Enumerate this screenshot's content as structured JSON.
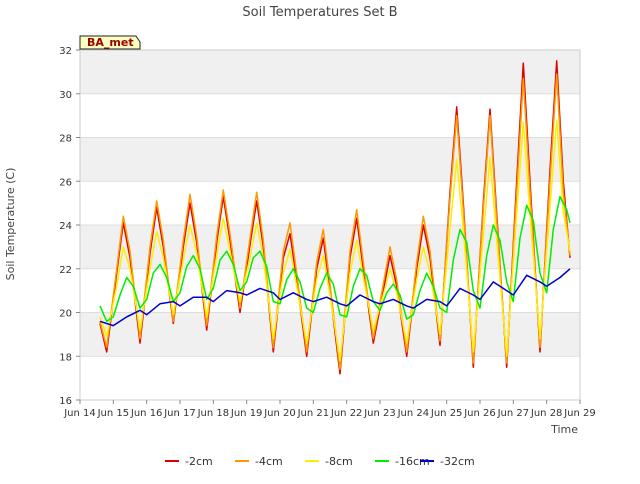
{
  "chart_data": {
    "type": "line",
    "title": "Soil Temperatures Set B",
    "xlabel": "Time",
    "ylabel": "Soil Temperature (C)",
    "site_label": "BA_met",
    "ylim": [
      16,
      32
    ],
    "xlim": [
      14.0,
      29.0
    ],
    "yticks": [
      16,
      18,
      20,
      22,
      24,
      26,
      28,
      30,
      32
    ],
    "xticks": [
      {
        "x": 14,
        "label": "Jun 14"
      },
      {
        "x": 15,
        "label": "Jun 15"
      },
      {
        "x": 16,
        "label": "Jun 16"
      },
      {
        "x": 17,
        "label": "Jun 17"
      },
      {
        "x": 18,
        "label": "Jun 18"
      },
      {
        "x": 19,
        "label": "Jun 19"
      },
      {
        "x": 20,
        "label": "Jun 20"
      },
      {
        "x": 21,
        "label": "Jun 21"
      },
      {
        "x": 22,
        "label": "Jun 22"
      },
      {
        "x": 23,
        "label": "Jun 23"
      },
      {
        "x": 24,
        "label": "Jun 24"
      },
      {
        "x": 25,
        "label": "Jun 25"
      },
      {
        "x": 26,
        "label": "Jun 26"
      },
      {
        "x": 27,
        "label": "Jun 27"
      },
      {
        "x": 28,
        "label": "Jun 28"
      },
      {
        "x": 29,
        "label": "Jun 29"
      }
    ],
    "grid": true,
    "legend_position": "bottom",
    "series": [
      {
        "name": "-2cm",
        "color": "#dd0000",
        "points": [
          [
            14.6,
            19.5
          ],
          [
            14.8,
            18.2
          ],
          [
            15.1,
            21.8
          ],
          [
            15.3,
            24.1
          ],
          [
            15.5,
            22.5
          ],
          [
            15.8,
            18.6
          ],
          [
            16.1,
            22.7
          ],
          [
            16.3,
            24.8
          ],
          [
            16.5,
            23.0
          ],
          [
            16.8,
            19.5
          ],
          [
            17.1,
            23.0
          ],
          [
            17.3,
            25.0
          ],
          [
            17.5,
            23.2
          ],
          [
            17.8,
            19.2
          ],
          [
            18.1,
            23.2
          ],
          [
            18.3,
            25.3
          ],
          [
            18.5,
            23.3
          ],
          [
            18.8,
            20.0
          ],
          [
            19.1,
            23.1
          ],
          [
            19.3,
            25.1
          ],
          [
            19.5,
            23.0
          ],
          [
            19.8,
            18.2
          ],
          [
            20.1,
            22.5
          ],
          [
            20.3,
            23.6
          ],
          [
            20.5,
            21.5
          ],
          [
            20.8,
            18.0
          ],
          [
            21.1,
            22.0
          ],
          [
            21.3,
            23.4
          ],
          [
            21.5,
            21.0
          ],
          [
            21.8,
            17.2
          ],
          [
            22.1,
            22.5
          ],
          [
            22.3,
            24.3
          ],
          [
            22.5,
            22.0
          ],
          [
            22.8,
            18.6
          ],
          [
            23.1,
            21.0
          ],
          [
            23.3,
            22.6
          ],
          [
            23.5,
            21.2
          ],
          [
            23.8,
            18.0
          ],
          [
            24.1,
            22.0
          ],
          [
            24.3,
            24.0
          ],
          [
            24.5,
            22.5
          ],
          [
            24.8,
            18.5
          ],
          [
            25.1,
            25.5
          ],
          [
            25.3,
            29.4
          ],
          [
            25.5,
            25.0
          ],
          [
            25.8,
            17.5
          ],
          [
            26.1,
            25.0
          ],
          [
            26.3,
            29.3
          ],
          [
            26.5,
            24.5
          ],
          [
            26.8,
            17.5
          ],
          [
            27.1,
            26.0
          ],
          [
            27.3,
            31.4
          ],
          [
            27.5,
            26.0
          ],
          [
            27.8,
            18.2
          ],
          [
            28.1,
            26.5
          ],
          [
            28.3,
            31.5
          ],
          [
            28.5,
            26.0
          ],
          [
            28.7,
            22.5
          ]
        ]
      },
      {
        "name": "-4cm",
        "color": "#ff9900",
        "points": [
          [
            14.6,
            19.6
          ],
          [
            14.8,
            18.4
          ],
          [
            15.1,
            22.0
          ],
          [
            15.3,
            24.4
          ],
          [
            15.5,
            22.8
          ],
          [
            15.8,
            18.8
          ],
          [
            16.1,
            23.0
          ],
          [
            16.3,
            25.1
          ],
          [
            16.5,
            23.3
          ],
          [
            16.8,
            19.6
          ],
          [
            17.1,
            23.3
          ],
          [
            17.3,
            25.4
          ],
          [
            17.5,
            23.5
          ],
          [
            17.8,
            19.4
          ],
          [
            18.1,
            23.5
          ],
          [
            18.3,
            25.6
          ],
          [
            18.5,
            23.6
          ],
          [
            18.8,
            20.2
          ],
          [
            19.1,
            23.4
          ],
          [
            19.3,
            25.5
          ],
          [
            19.5,
            23.3
          ],
          [
            19.8,
            18.4
          ],
          [
            20.1,
            22.8
          ],
          [
            20.3,
            24.1
          ],
          [
            20.5,
            21.8
          ],
          [
            20.8,
            18.2
          ],
          [
            21.1,
            22.3
          ],
          [
            21.3,
            23.8
          ],
          [
            21.5,
            21.3
          ],
          [
            21.8,
            17.4
          ],
          [
            22.1,
            22.8
          ],
          [
            22.3,
            24.7
          ],
          [
            22.5,
            22.3
          ],
          [
            22.8,
            18.8
          ],
          [
            23.1,
            21.3
          ],
          [
            23.3,
            23.0
          ],
          [
            23.5,
            21.5
          ],
          [
            23.8,
            18.2
          ],
          [
            24.1,
            22.3
          ],
          [
            24.3,
            24.4
          ],
          [
            24.5,
            22.8
          ],
          [
            24.8,
            18.7
          ],
          [
            25.1,
            25.2
          ],
          [
            25.3,
            29.0
          ],
          [
            25.5,
            24.7
          ],
          [
            25.8,
            17.7
          ],
          [
            26.1,
            24.7
          ],
          [
            26.3,
            29.0
          ],
          [
            26.5,
            24.2
          ],
          [
            26.8,
            17.7
          ],
          [
            27.1,
            25.5
          ],
          [
            27.3,
            30.7
          ],
          [
            27.5,
            25.5
          ],
          [
            27.8,
            18.4
          ],
          [
            28.1,
            26.0
          ],
          [
            28.3,
            30.9
          ],
          [
            28.5,
            25.5
          ],
          [
            28.7,
            22.6
          ]
        ]
      },
      {
        "name": "-8cm",
        "color": "#ffee00",
        "points": [
          [
            14.6,
            19.8
          ],
          [
            14.8,
            18.9
          ],
          [
            15.1,
            21.2
          ],
          [
            15.3,
            23.0
          ],
          [
            15.5,
            22.0
          ],
          [
            15.8,
            19.2
          ],
          [
            16.1,
            22.0
          ],
          [
            16.3,
            23.7
          ],
          [
            16.5,
            22.5
          ],
          [
            16.8,
            19.9
          ],
          [
            17.1,
            22.4
          ],
          [
            17.3,
            24.0
          ],
          [
            17.5,
            22.7
          ],
          [
            17.8,
            19.8
          ],
          [
            18.1,
            22.6
          ],
          [
            18.3,
            24.3
          ],
          [
            18.5,
            22.8
          ],
          [
            18.8,
            20.5
          ],
          [
            19.1,
            22.5
          ],
          [
            19.3,
            24.1
          ],
          [
            19.5,
            22.5
          ],
          [
            19.8,
            18.8
          ],
          [
            20.1,
            21.8
          ],
          [
            20.3,
            22.9
          ],
          [
            20.5,
            21.2
          ],
          [
            20.8,
            18.6
          ],
          [
            21.1,
            21.5
          ],
          [
            21.3,
            22.6
          ],
          [
            21.5,
            20.8
          ],
          [
            21.8,
            17.8
          ],
          [
            22.1,
            21.8
          ],
          [
            22.3,
            23.3
          ],
          [
            22.5,
            21.6
          ],
          [
            22.8,
            19.2
          ],
          [
            23.1,
            20.8
          ],
          [
            23.3,
            22.0
          ],
          [
            23.5,
            20.9
          ],
          [
            23.8,
            18.6
          ],
          [
            24.1,
            21.5
          ],
          [
            24.3,
            23.0
          ],
          [
            24.5,
            21.8
          ],
          [
            24.8,
            19.0
          ],
          [
            25.1,
            23.8
          ],
          [
            25.3,
            27.0
          ],
          [
            25.5,
            23.8
          ],
          [
            25.8,
            18.2
          ],
          [
            26.1,
            23.5
          ],
          [
            26.3,
            27.1
          ],
          [
            26.5,
            23.3
          ],
          [
            26.8,
            18.0
          ],
          [
            27.1,
            24.5
          ],
          [
            27.3,
            28.7
          ],
          [
            27.5,
            24.5
          ],
          [
            27.8,
            18.8
          ],
          [
            28.1,
            24.8
          ],
          [
            28.3,
            28.8
          ],
          [
            28.5,
            24.6
          ],
          [
            28.7,
            22.8
          ]
        ]
      },
      {
        "name": "-16cm",
        "color": "#00ee00",
        "points": [
          [
            14.6,
            20.3
          ],
          [
            14.8,
            19.6
          ],
          [
            15.0,
            19.8
          ],
          [
            15.2,
            20.8
          ],
          [
            15.4,
            21.6
          ],
          [
            15.6,
            21.2
          ],
          [
            15.8,
            20.2
          ],
          [
            16.0,
            20.6
          ],
          [
            16.2,
            21.8
          ],
          [
            16.4,
            22.2
          ],
          [
            16.6,
            21.6
          ],
          [
            16.8,
            20.5
          ],
          [
            17.0,
            20.9
          ],
          [
            17.2,
            22.1
          ],
          [
            17.4,
            22.6
          ],
          [
            17.6,
            22.0
          ],
          [
            17.8,
            20.6
          ],
          [
            18.0,
            21.1
          ],
          [
            18.2,
            22.4
          ],
          [
            18.4,
            22.8
          ],
          [
            18.6,
            22.2
          ],
          [
            18.8,
            21.0
          ],
          [
            19.0,
            21.4
          ],
          [
            19.2,
            22.5
          ],
          [
            19.4,
            22.8
          ],
          [
            19.6,
            22.1
          ],
          [
            19.8,
            20.5
          ],
          [
            20.0,
            20.4
          ],
          [
            20.2,
            21.5
          ],
          [
            20.4,
            22.0
          ],
          [
            20.6,
            21.4
          ],
          [
            20.8,
            20.2
          ],
          [
            21.0,
            20.0
          ],
          [
            21.2,
            21.1
          ],
          [
            21.4,
            21.8
          ],
          [
            21.6,
            21.3
          ],
          [
            21.8,
            19.9
          ],
          [
            22.0,
            19.8
          ],
          [
            22.2,
            21.2
          ],
          [
            22.4,
            22.0
          ],
          [
            22.6,
            21.7
          ],
          [
            22.8,
            20.5
          ],
          [
            23.0,
            20.1
          ],
          [
            23.2,
            20.9
          ],
          [
            23.4,
            21.3
          ],
          [
            23.6,
            20.8
          ],
          [
            23.8,
            19.7
          ],
          [
            24.0,
            19.9
          ],
          [
            24.2,
            21.0
          ],
          [
            24.4,
            21.8
          ],
          [
            24.6,
            21.2
          ],
          [
            24.8,
            20.2
          ],
          [
            25.0,
            20.0
          ],
          [
            25.2,
            22.4
          ],
          [
            25.4,
            23.8
          ],
          [
            25.6,
            23.2
          ],
          [
            25.8,
            21.0
          ],
          [
            26.0,
            20.2
          ],
          [
            26.2,
            22.6
          ],
          [
            26.4,
            24.0
          ],
          [
            26.6,
            23.3
          ],
          [
            26.8,
            21.4
          ],
          [
            27.0,
            20.5
          ],
          [
            27.2,
            23.4
          ],
          [
            27.4,
            24.9
          ],
          [
            27.6,
            24.2
          ],
          [
            27.8,
            21.8
          ],
          [
            28.0,
            20.9
          ],
          [
            28.2,
            23.8
          ],
          [
            28.4,
            25.3
          ],
          [
            28.6,
            24.7
          ],
          [
            28.7,
            24.1
          ]
        ]
      },
      {
        "name": "-32cm",
        "color": "#0000cc",
        "points": [
          [
            14.6,
            19.6
          ],
          [
            15.0,
            19.4
          ],
          [
            15.4,
            19.8
          ],
          [
            15.8,
            20.1
          ],
          [
            16.0,
            19.9
          ],
          [
            16.4,
            20.4
          ],
          [
            16.8,
            20.5
          ],
          [
            17.0,
            20.3
          ],
          [
            17.4,
            20.7
          ],
          [
            17.8,
            20.7
          ],
          [
            18.0,
            20.5
          ],
          [
            18.4,
            21.0
          ],
          [
            18.8,
            20.9
          ],
          [
            19.0,
            20.8
          ],
          [
            19.4,
            21.1
          ],
          [
            19.8,
            20.9
          ],
          [
            20.0,
            20.6
          ],
          [
            20.4,
            20.9
          ],
          [
            20.8,
            20.6
          ],
          [
            21.0,
            20.5
          ],
          [
            21.4,
            20.7
          ],
          [
            21.8,
            20.4
          ],
          [
            22.0,
            20.3
          ],
          [
            22.4,
            20.8
          ],
          [
            22.8,
            20.5
          ],
          [
            23.0,
            20.4
          ],
          [
            23.4,
            20.6
          ],
          [
            23.8,
            20.3
          ],
          [
            24.0,
            20.2
          ],
          [
            24.4,
            20.6
          ],
          [
            24.8,
            20.5
          ],
          [
            25.0,
            20.3
          ],
          [
            25.4,
            21.1
          ],
          [
            25.8,
            20.8
          ],
          [
            26.0,
            20.6
          ],
          [
            26.4,
            21.4
          ],
          [
            26.8,
            21.0
          ],
          [
            27.0,
            20.8
          ],
          [
            27.4,
            21.7
          ],
          [
            27.8,
            21.4
          ],
          [
            28.0,
            21.2
          ],
          [
            28.4,
            21.6
          ],
          [
            28.7,
            22.0
          ]
        ]
      }
    ]
  }
}
